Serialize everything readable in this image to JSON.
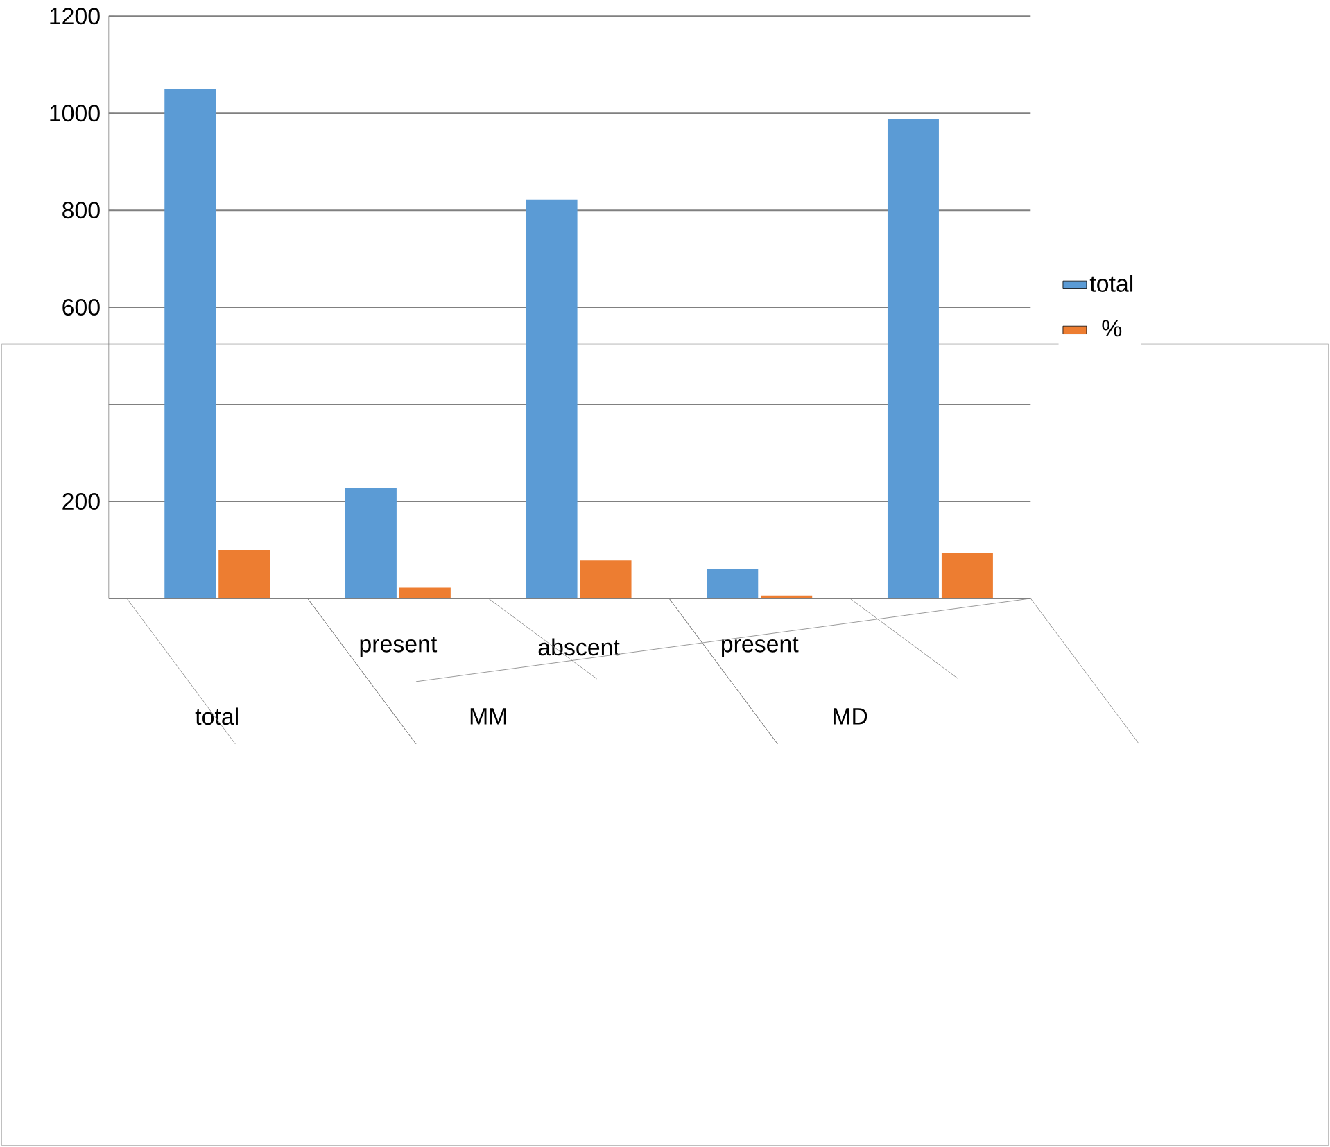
{
  "chart_data": {
    "type": "bar",
    "categories": [
      null,
      "present",
      "abscent",
      "present",
      null
    ],
    "series": [
      {
        "name": "total",
        "color": "#5b9bd5",
        "values": [
          1050,
          228,
          822,
          61,
          989
        ]
      },
      {
        "name": "%",
        "color": "#ed7d31",
        "values": [
          100,
          22,
          78,
          6,
          94
        ]
      }
    ],
    "ylim": [
      0,
      1200
    ],
    "yticks": [
      {
        "value": 0,
        "label": null
      },
      200,
      {
        "value": 400,
        "label": null
      },
      600,
      800,
      1000,
      1200
    ],
    "grid": "y",
    "legend": "right",
    "annotations": [
      "total",
      "MM",
      "MD"
    ]
  }
}
